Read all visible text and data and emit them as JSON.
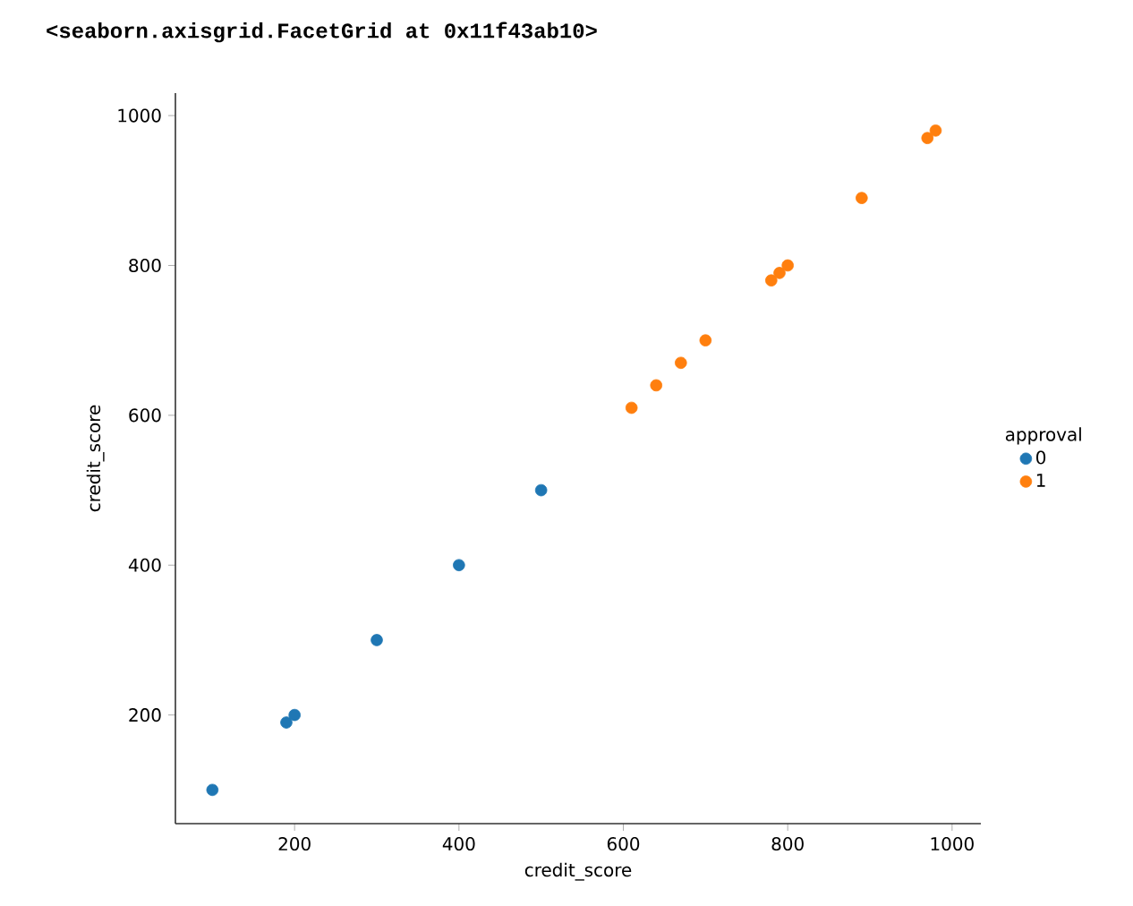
{
  "chart_data": {
    "type": "scatter",
    "title": "<seaborn.axisgrid.FacetGrid at 0x11f43ab10>",
    "xlabel": "credit_score",
    "ylabel": "credit_score",
    "legend_title": "approval",
    "legend": "right",
    "xlim": [
      55,
      1035
    ],
    "ylim": [
      55,
      1030
    ],
    "xticks": [
      200,
      400,
      600,
      800,
      1000
    ],
    "yticks": [
      200,
      400,
      600,
      800,
      1000
    ],
    "series": [
      {
        "name": "0",
        "color": "#1f77b4",
        "x": [
          100,
          190,
          200,
          300,
          400,
          500
        ],
        "values": [
          100,
          190,
          200,
          300,
          400,
          500
        ]
      },
      {
        "name": "1",
        "color": "#ff7f0e",
        "x": [
          610,
          640,
          670,
          700,
          780,
          790,
          800,
          890,
          970,
          980
        ],
        "values": [
          610,
          640,
          670,
          700,
          780,
          790,
          800,
          890,
          970,
          980
        ]
      }
    ]
  }
}
